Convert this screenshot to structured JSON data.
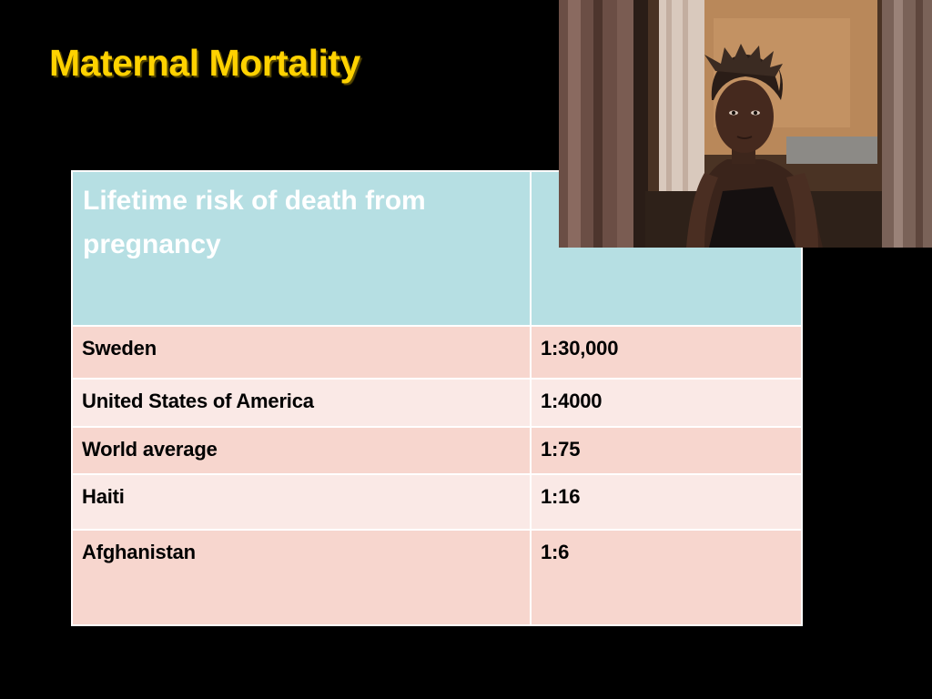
{
  "slide": {
    "title": "Maternal Mortality",
    "table": {
      "header": "Lifetime risk of death from pregnancy",
      "rows": [
        {
          "country": "Sweden",
          "risk": "1:30,000"
        },
        {
          "country": "United States of America",
          "risk": "1:4000"
        },
        {
          "country": "World average",
          "risk": "1:75"
        },
        {
          "country": "Haiti",
          "risk": "1:16"
        },
        {
          "country": "Afghanistan",
          "risk": "1:6"
        }
      ]
    },
    "photo": {
      "icon": "woman-portrait-photo"
    },
    "colors": {
      "title": "#ffd200",
      "header_bg": "#b6dfe3",
      "row_dark": "#f7d6ce",
      "row_light": "#fae9e6"
    }
  }
}
